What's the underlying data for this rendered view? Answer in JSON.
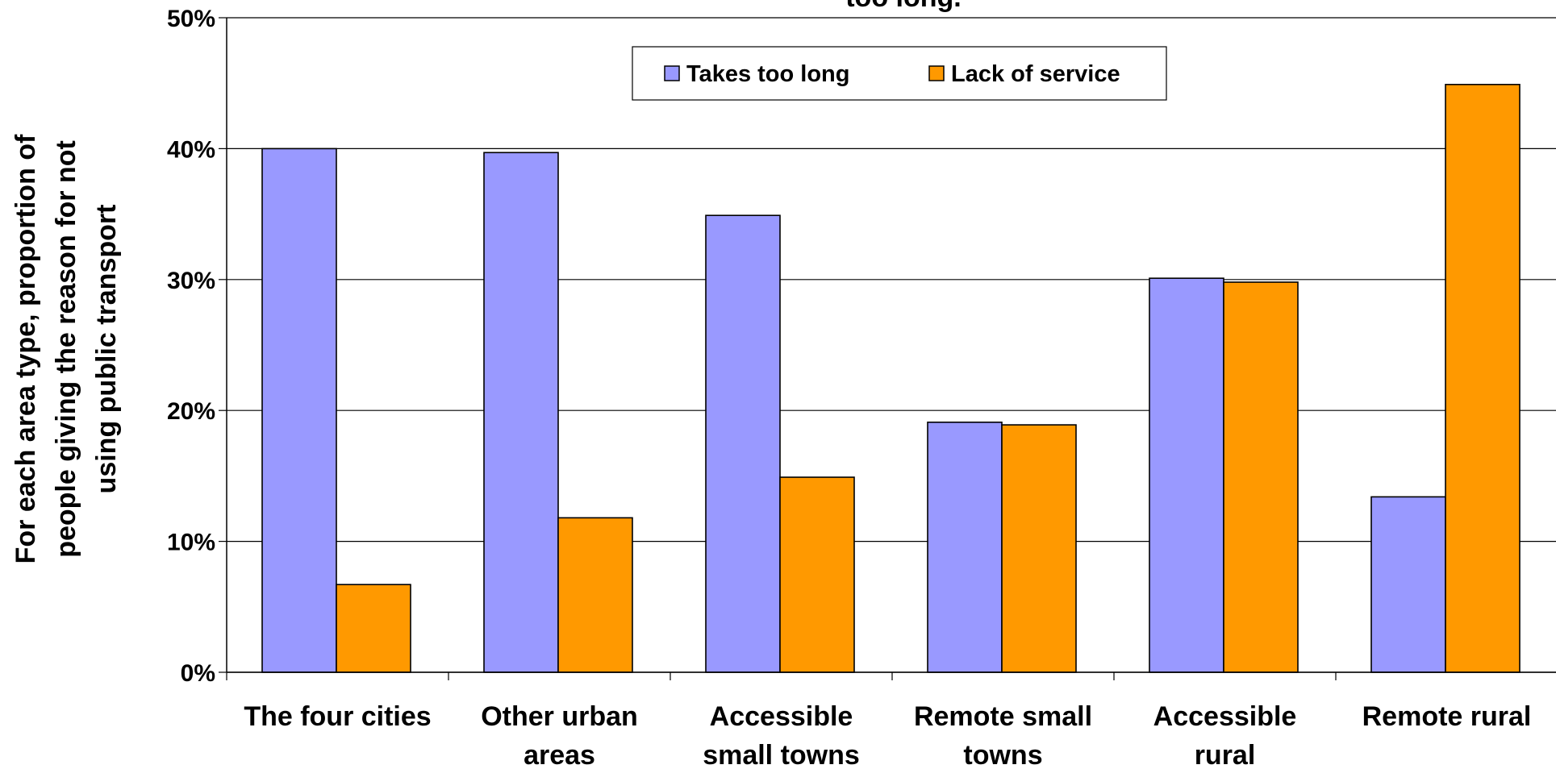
{
  "chart_data": {
    "type": "bar",
    "title": "too long.",
    "ylabel_lines": [
      "For each area type, proportion of",
      "people giving the reason for not",
      "using public transport"
    ],
    "xlabel": "",
    "ylim": [
      0,
      50
    ],
    "y_ticks": [
      "0%",
      "10%",
      "20%",
      "30%",
      "40%",
      "50%"
    ],
    "grid": true,
    "legend_position": "top-center",
    "categories": [
      [
        "The four cities"
      ],
      [
        "Other urban",
        "areas"
      ],
      [
        "Accessible",
        "small towns"
      ],
      [
        "Remote small",
        "towns"
      ],
      [
        "Accessible",
        "rural"
      ],
      [
        "Remote rural"
      ]
    ],
    "series": [
      {
        "name": "Takes too long",
        "color": "#9999ff",
        "values": [
          40.0,
          39.7,
          34.9,
          19.1,
          30.1,
          13.4
        ]
      },
      {
        "name": "Lack of service",
        "color": "#ff9900",
        "values": [
          6.7,
          11.8,
          14.9,
          18.9,
          29.8,
          44.9
        ]
      }
    ]
  }
}
